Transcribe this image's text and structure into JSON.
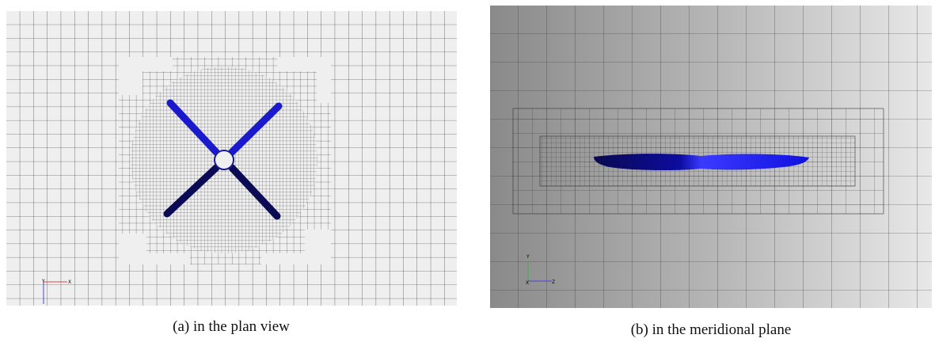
{
  "figure": {
    "panels": [
      {
        "caption": "(a) in the plan view",
        "axis_labels": [
          "Y",
          "X"
        ]
      },
      {
        "caption": "(b) in the meridional plane",
        "axis_labels": [
          "Y",
          "X",
          "Z"
        ]
      }
    ]
  }
}
